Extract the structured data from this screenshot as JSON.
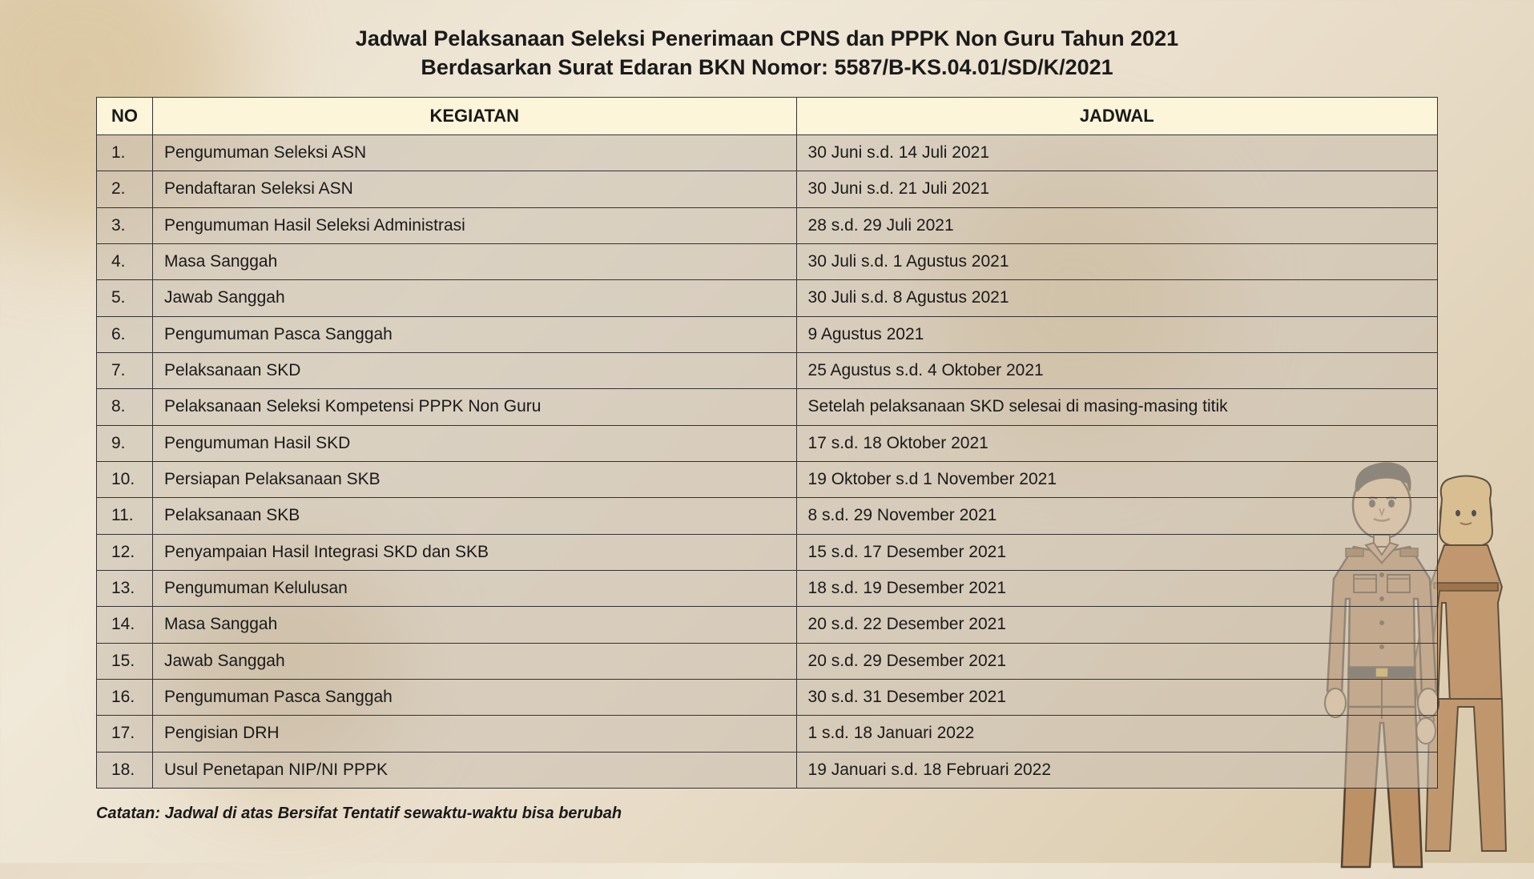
{
  "title": {
    "line1": "Jadwal Pelaksanaan  Seleksi  Penerimaan  CPNS  dan PPPK Non Guru Tahun 2021",
    "line2": "Berdasarkan Surat Edaran BKN  Nomor: 5587/B-KS.04.01/SD/K/2021"
  },
  "table": {
    "columns": [
      "NO",
      "KEGIATAN",
      "JADWAL"
    ],
    "column_widths": [
      "70px",
      "48%",
      "auto"
    ],
    "header_bg": "#fdf5d9",
    "row_bg": "rgba(200,190,175,0.55)",
    "border_color": "#333333",
    "font_size_header": 22,
    "font_size_cell": 21,
    "rows": [
      {
        "no": "1.",
        "kegiatan": "Pengumuman Seleksi ASN",
        "jadwal": "30 Juni s.d. 14 Juli 2021"
      },
      {
        "no": "2.",
        "kegiatan": "Pendaftaran Seleksi ASN",
        "jadwal": "30 Juni s.d. 21 Juli 2021"
      },
      {
        "no": "3.",
        "kegiatan": "Pengumuman Hasil Seleksi Administrasi",
        "jadwal": "28 s.d. 29 Juli 2021"
      },
      {
        "no": "4.",
        "kegiatan": "Masa Sanggah",
        "jadwal": "30 Juli s.d. 1 Agustus 2021"
      },
      {
        "no": "5.",
        "kegiatan": "Jawab Sanggah",
        "jadwal": "30 Juli s.d. 8 Agustus 2021"
      },
      {
        "no": "6.",
        "kegiatan": "Pengumuman Pasca Sanggah",
        "jadwal": "9 Agustus 2021"
      },
      {
        "no": "7.",
        "kegiatan": "Pelaksanaan SKD",
        "jadwal": "25 Agustus s.d. 4 Oktober 2021"
      },
      {
        "no": "8.",
        "kegiatan": "Pelaksanaan Seleksi Kompetensi PPPK Non Guru",
        "jadwal": "Setelah pelaksanaan SKD selesai di masing-masing titik"
      },
      {
        "no": "9.",
        "kegiatan": "Pengumuman Hasil SKD",
        "jadwal": "17 s.d. 18 Oktober 2021"
      },
      {
        "no": "10.",
        "kegiatan": "Persiapan Pelaksanaan SKB",
        "jadwal": "19 Oktober s.d 1 November 2021"
      },
      {
        "no": "11.",
        "kegiatan": "Pelaksanaan SKB",
        "jadwal": "8 s.d. 29 November 2021"
      },
      {
        "no": "12.",
        "kegiatan": "Penyampaian Hasil Integrasi SKD dan SKB",
        "jadwal": "15 s.d. 17 Desember 2021"
      },
      {
        "no": "13.",
        "kegiatan": "Pengumuman Kelulusan",
        "jadwal": "18 s.d. 19 Desember 2021"
      },
      {
        "no": "14.",
        "kegiatan": " Masa Sanggah",
        "jadwal": "20 s.d. 22 Desember 2021"
      },
      {
        "no": "15.",
        "kegiatan": "Jawab Sanggah",
        "jadwal": "20 s.d. 29 Desember 2021"
      },
      {
        "no": "16.",
        "kegiatan": "Pengumuman Pasca Sanggah",
        "jadwal": "30 s.d. 31 Desember 2021"
      },
      {
        "no": "17.",
        "kegiatan": "Pengisian DRH",
        "jadwal": "1 s.d. 18 Januari 2022"
      },
      {
        "no": "18.",
        "kegiatan": "Usul Penetapan NIP/NI PPPK",
        "jadwal": "19 Januari s.d. 18 Februari 2022"
      }
    ]
  },
  "footnote": "Catatan: Jadwal di atas Bersifat Tentatif sewaktu-waktu bisa berubah",
  "styling": {
    "page_bg_gradient": [
      "#e8dcc8",
      "#f0e8d8",
      "#d8c8a8"
    ],
    "title_fontsize": 27,
    "title_color": "#1a1a1a",
    "footnote_fontsize": 20
  },
  "illustration": {
    "description": "two-civil-servant-figures",
    "colors": {
      "uniform": "#b8875a",
      "outline": "#3a2a1a",
      "skin": "#e8c8a0",
      "hair": "#2a2a2a"
    }
  }
}
